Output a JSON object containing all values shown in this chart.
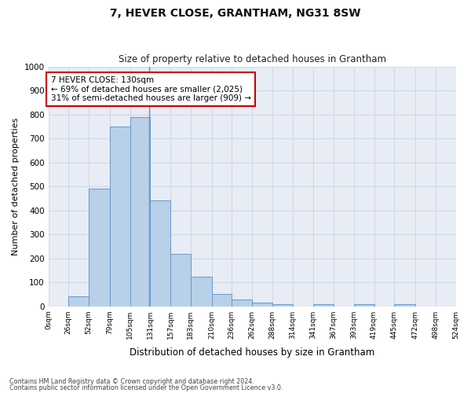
{
  "title": "7, HEVER CLOSE, GRANTHAM, NG31 8SW",
  "subtitle": "Size of property relative to detached houses in Grantham",
  "xlabel": "Distribution of detached houses by size in Grantham",
  "ylabel": "Number of detached properties",
  "bar_edges": [
    0,
    26,
    52,
    79,
    105,
    131,
    157,
    183,
    210,
    236,
    262,
    288,
    314,
    341,
    367,
    393,
    419,
    445,
    472,
    498,
    524
  ],
  "bar_heights": [
    0,
    40,
    490,
    750,
    790,
    440,
    220,
    125,
    50,
    27,
    15,
    10,
    0,
    8,
    0,
    8,
    0,
    8,
    0,
    0
  ],
  "bar_color": "#b8d0e8",
  "bar_edge_color": "#6699cc",
  "property_line_x": 130,
  "annotation_text": "7 HEVER CLOSE: 130sqm\n← 69% of detached houses are smaller (2,025)\n31% of semi-detached houses are larger (909) →",
  "annotation_box_color": "#ffffff",
  "annotation_border_color": "#cc0000",
  "ylim": [
    0,
    1000
  ],
  "yticks": [
    0,
    100,
    200,
    300,
    400,
    500,
    600,
    700,
    800,
    900,
    1000
  ],
  "grid_color": "#d0d8e8",
  "bg_color": "#e8ecf4",
  "footnote1": "Contains HM Land Registry data © Crown copyright and database right 2024.",
  "footnote2": "Contains public sector information licensed under the Open Government Licence v3.0."
}
